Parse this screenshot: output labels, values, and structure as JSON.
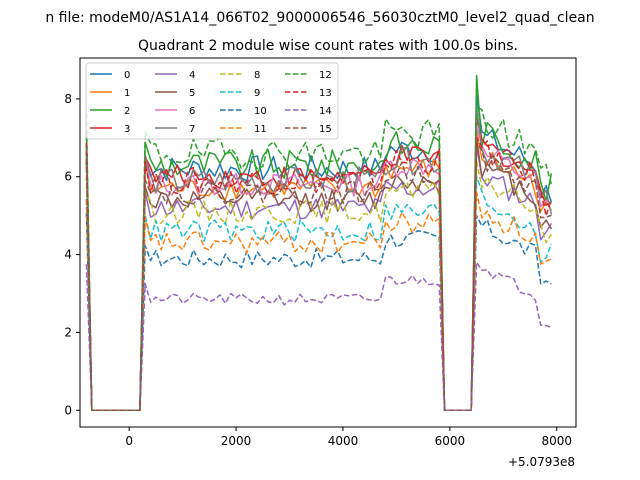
{
  "figure": {
    "suptitle": "n file: modeM0/AS1A14_066T02_9000006546_56030cztM0_level2_quad_clean"
  },
  "chart_data": {
    "type": "line",
    "title": "Quadrant 2 module wise count rates with 100.0s bins.",
    "xlabel": "",
    "ylabel": "",
    "x_offset_label": "+5.0793e8",
    "x_offset": 507930000,
    "xlim": [
      -920,
      8360
    ],
    "ylim": [
      -0.43,
      9.05
    ],
    "xticks": [
      0,
      2000,
      4000,
      6000,
      8000
    ],
    "xtick_labels": [
      "0",
      "2000",
      "4000",
      "6000",
      "8000"
    ],
    "yticks": [
      0,
      2,
      4,
      6,
      8
    ],
    "ytick_labels": [
      "0",
      "2",
      "4",
      "6",
      "8"
    ],
    "grid": false,
    "legend_placement": "top-left",
    "legend_columns": 4,
    "series": [
      {
        "name": "0",
        "color": "#1f77b4",
        "dash": "solid",
        "level": 6.2,
        "peak": 8.1,
        "noise": 0.35
      },
      {
        "name": "1",
        "color": "#ff7f0e",
        "dash": "solid",
        "level": 5.7,
        "peak": 7.2,
        "noise": 0.3
      },
      {
        "name": "2",
        "color": "#2ca02c",
        "dash": "solid",
        "level": 6.3,
        "peak": 8.6,
        "noise": 0.4
      },
      {
        "name": "3",
        "color": "#d62728",
        "dash": "solid",
        "level": 6.0,
        "peak": 7.5,
        "noise": 0.3
      },
      {
        "name": "4",
        "color": "#9467bd",
        "dash": "solid",
        "level": 5.2,
        "peak": 6.8,
        "noise": 0.3
      },
      {
        "name": "5",
        "color": "#8c564b",
        "dash": "solid",
        "level": 5.4,
        "peak": 7.0,
        "noise": 0.3
      },
      {
        "name": "6",
        "color": "#e377c2",
        "dash": "solid",
        "level": 5.8,
        "peak": 7.3,
        "noise": 0.3
      },
      {
        "name": "7",
        "color": "#7f7f7f",
        "dash": "solid",
        "level": 5.9,
        "peak": 7.8,
        "noise": 0.35
      },
      {
        "name": "8",
        "color": "#bcbd22",
        "dash": "dashed",
        "level": 5.1,
        "peak": 6.4,
        "noise": 0.3
      },
      {
        "name": "9",
        "color": "#17becf",
        "dash": "dashed",
        "level": 4.6,
        "peak": 6.0,
        "noise": 0.3
      },
      {
        "name": "10",
        "color": "#1f77b4",
        "dash": "dashed",
        "level": 3.9,
        "peak": 5.0,
        "noise": 0.25
      },
      {
        "name": "11",
        "color": "#ff7f0e",
        "dash": "dashed",
        "level": 4.3,
        "peak": 5.6,
        "noise": 0.3
      },
      {
        "name": "12",
        "color": "#2ca02c",
        "dash": "dashed",
        "level": 6.6,
        "peak": 7.8,
        "noise": 0.4
      },
      {
        "name": "13",
        "color": "#d62728",
        "dash": "dashed",
        "level": 5.9,
        "peak": 7.0,
        "noise": 0.35
      },
      {
        "name": "14",
        "color": "#9467bd",
        "dash": "dashed",
        "level": 2.85,
        "peak": 3.8,
        "noise": 0.15
      },
      {
        "name": "15",
        "color": "#8c564b",
        "dash": "dashed",
        "level": 5.6,
        "peak": 6.9,
        "noise": 0.3
      }
    ],
    "x_breakpoints": [
      -800,
      -700,
      200,
      300,
      5800,
      5900,
      6400,
      6500,
      7900
    ],
    "zero_intervals": [
      [
        -700,
        200
      ],
      [
        5900,
        6400
      ]
    ]
  }
}
